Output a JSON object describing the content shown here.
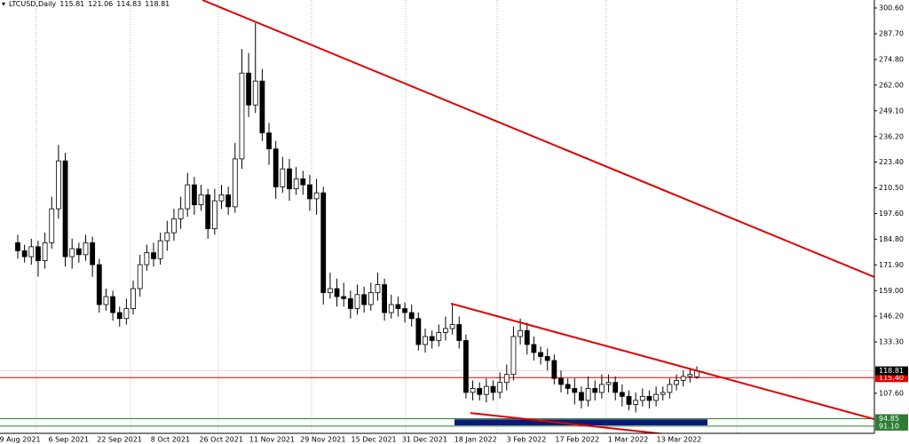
{
  "chart_data": {
    "type": "candlestick",
    "symbol": "LTCUSD,Daily",
    "xtick_labels": [
      "19 Aug 2021",
      "6 Sep 2021",
      "22 Sep 2021",
      "8 Oct 2021",
      "26 Oct 2021",
      "11 Nov 2021",
      "29 Nov 2021",
      "15 Dec 2021",
      "31 Dec 2021",
      "18 Jan 2022",
      "3 Feb 2022",
      "17 Feb 2022",
      "1 Mar 2022",
      "13 Mar 2022"
    ],
    "open": [
      183,
      179,
      176,
      181,
      174,
      183,
      200,
      224,
      176,
      180,
      177,
      183,
      172,
      152,
      156,
      148,
      145,
      150,
      160,
      172,
      178,
      175,
      184,
      188,
      195,
      200,
      212,
      202,
      207,
      190,
      204,
      207,
      201,
      225,
      268,
      252,
      264,
      238,
      230,
      211,
      220,
      210,
      215,
      212,
      205,
      208,
      158,
      160,
      156,
      155,
      150,
      157,
      152,
      158,
      162,
      148,
      152,
      150,
      148,
      145,
      132,
      136,
      134,
      138,
      140,
      142,
      134,
      108,
      110,
      107,
      111,
      108,
      113,
      117,
      136,
      139,
      132,
      128,
      126,
      124,
      115,
      112,
      110,
      108,
      104,
      110,
      108,
      112,
      113,
      108,
      106,
      102,
      104,
      106,
      104,
      107,
      108,
      112,
      114,
      116,
      115.81
    ],
    "high": [
      187,
      182,
      185,
      184,
      188,
      206,
      232,
      228,
      185,
      183,
      187,
      186,
      175,
      160,
      159,
      151,
      155,
      164,
      177,
      182,
      183,
      188,
      194,
      200,
      206,
      218,
      216,
      212,
      210,
      210,
      212,
      211,
      233,
      280,
      278,
      293,
      270,
      243,
      234,
      226,
      225,
      221,
      219,
      217,
      215,
      211,
      168,
      165,
      163,
      159,
      162,
      161,
      163,
      168,
      165,
      157,
      156,
      153,
      152,
      148,
      140,
      139,
      142,
      146,
      152,
      146,
      137,
      114,
      113,
      115,
      114,
      118,
      122,
      141,
      145,
      143,
      136,
      131,
      130,
      127,
      119,
      115,
      115,
      111,
      116,
      114,
      117,
      117,
      116,
      112,
      109,
      108,
      110,
      109,
      111,
      111,
      115,
      117,
      119,
      120,
      121.06
    ],
    "low": [
      175,
      173,
      172,
      166,
      170,
      180,
      195,
      171,
      170,
      173,
      174,
      166,
      148,
      149,
      144,
      141,
      142,
      147,
      156,
      169,
      171,
      172,
      179,
      184,
      190,
      196,
      197,
      199,
      185,
      187,
      200,
      197,
      198,
      220,
      246,
      248,
      234,
      222,
      205,
      208,
      204,
      207,
      207,
      199,
      197,
      152,
      155,
      151,
      151,
      145,
      147,
      148,
      149,
      154,
      144,
      145,
      146,
      143,
      141,
      129,
      128,
      130,
      131,
      134,
      137,
      130,
      105,
      104,
      104,
      103,
      104,
      105,
      109,
      114,
      132,
      127,
      124,
      122,
      119,
      112,
      108,
      107,
      102,
      100,
      101,
      104,
      105,
      108,
      104,
      101,
      99,
      98,
      101,
      100,
      101,
      104,
      105,
      109,
      111,
      113,
      114.83
    ],
    "close": [
      179,
      176,
      181,
      174,
      183,
      200,
      224,
      176,
      180,
      177,
      183,
      172,
      152,
      156,
      148,
      145,
      150,
      160,
      172,
      178,
      175,
      184,
      188,
      195,
      200,
      212,
      202,
      207,
      190,
      204,
      207,
      201,
      225,
      268,
      252,
      264,
      238,
      230,
      211,
      220,
      210,
      215,
      212,
      205,
      208,
      158,
      160,
      156,
      155,
      150,
      157,
      152,
      158,
      162,
      148,
      152,
      150,
      148,
      145,
      132,
      136,
      134,
      138,
      140,
      142,
      134,
      108,
      110,
      107,
      111,
      108,
      113,
      117,
      136,
      139,
      132,
      128,
      126,
      124,
      115,
      112,
      110,
      108,
      104,
      110,
      108,
      112,
      113,
      108,
      106,
      102,
      104,
      106,
      104,
      107,
      108,
      112,
      114,
      116,
      117,
      118.81
    ],
    "ylim": [
      87.5,
      304.6
    ],
    "yticks": [
      {
        "value": 300.6,
        "label": "300.60"
      },
      {
        "value": 287.7,
        "label": "287.70"
      },
      {
        "value": 274.8,
        "label": "274.80"
      },
      {
        "value": 262.0,
        "label": "262.00"
      },
      {
        "value": 249.1,
        "label": "249.10"
      },
      {
        "value": 236.2,
        "label": "236.20"
      },
      {
        "value": 223.4,
        "label": "223.40"
      },
      {
        "value": 210.5,
        "label": "210.50"
      },
      {
        "value": 197.6,
        "label": "197.60"
      },
      {
        "value": 184.8,
        "label": "184.80"
      },
      {
        "value": 171.9,
        "label": "171.90"
      },
      {
        "value": 159.0,
        "label": "159.00"
      },
      {
        "value": 146.2,
        "label": "146.20"
      },
      {
        "value": 133.3,
        "label": "133.30"
      },
      {
        "value": 107.6,
        "label": "107.60"
      }
    ],
    "hlines": [
      {
        "value": 115.4,
        "label": "115.40",
        "color": "#e00000"
      },
      {
        "value": 94.85,
        "label": "94.85",
        "color": "#2e7d32"
      },
      {
        "value": 91.1,
        "label": "91.10",
        "color": "#2e7d32"
      }
    ],
    "trendlines": [
      {
        "y": [
          304.6,
          165.8
        ],
        "color": "#e00000"
      },
      {
        "y": [
          152.5,
          94.6
        ],
        "color": "#e00000"
      },
      {
        "y": [
          97.7,
          86.6
        ],
        "color": "#e00000"
      }
    ],
    "zone": {
      "y": [
        94.5,
        91.5
      ],
      "color": "#0b1a78"
    },
    "bull_color": "#ffffff",
    "bear_color": "#000000"
  }
}
